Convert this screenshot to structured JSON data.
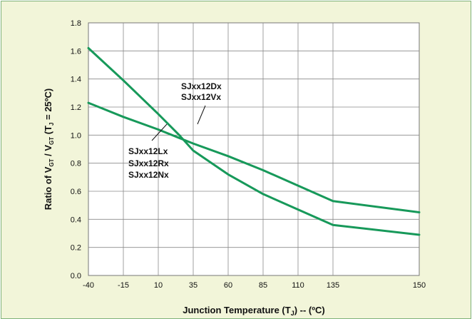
{
  "chart_data": {
    "type": "line",
    "xlabel": {
      "main": "Junction Temperature (T",
      "sub": "J",
      "tail": ") -- (ºC)"
    },
    "ylabel": {
      "p1": "Ratio of  V",
      "s1": "GT",
      "p2": " / V",
      "s2": "GT",
      "p3": " (T",
      "s3": "J",
      "p4": " = 25ºC)"
    },
    "x_ticks": [
      -40,
      -15,
      10,
      35,
      60,
      85,
      110,
      135,
      150
    ],
    "y_ticks": [
      "0.0",
      "0.2",
      "0.4",
      "0.6",
      "0.8",
      "1.0",
      "1.2",
      "1.4",
      "1.6",
      "1.8"
    ],
    "xlim": [
      -40,
      150
    ],
    "ylim": [
      0,
      1.8
    ],
    "grid": true,
    "series": [
      {
        "name": "SJxx12Dx / SJxx12Vx",
        "color": "#17995a",
        "x": [
          -40,
          -15,
          10,
          25,
          35,
          60,
          85,
          110,
          135,
          150
        ],
        "y": [
          1.62,
          1.39,
          1.15,
          1.0,
          0.89,
          0.72,
          0.58,
          0.47,
          0.36,
          0.29
        ]
      },
      {
        "name": "SJxx12Lx / SJxx12Rx / SJxx12Nx",
        "color": "#17995a",
        "x": [
          -40,
          -15,
          10,
          25,
          35,
          60,
          85,
          110,
          135,
          150
        ],
        "y": [
          1.23,
          1.13,
          1.04,
          0.98,
          0.94,
          0.85,
          0.75,
          0.64,
          0.53,
          0.45
        ]
      }
    ],
    "annotations": [
      {
        "lines": [
          "SJxx12Dx",
          "SJxx12Vx"
        ],
        "series": 0
      },
      {
        "lines": [
          "SJxx12Lx",
          "SJxx12Rx",
          "SJxx12Nx"
        ],
        "series": 1
      }
    ]
  }
}
